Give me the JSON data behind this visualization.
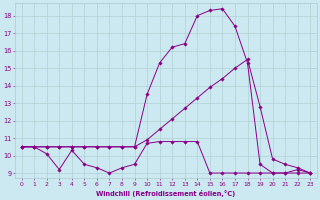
{
  "xlabel": "Windchill (Refroidissement éolien,°C)",
  "xlim": [
    -0.5,
    23.5
  ],
  "ylim": [
    8.7,
    18.7
  ],
  "yticks": [
    9,
    10,
    11,
    12,
    13,
    14,
    15,
    16,
    17,
    18
  ],
  "xticks": [
    0,
    1,
    2,
    3,
    4,
    5,
    6,
    7,
    8,
    9,
    10,
    11,
    12,
    13,
    14,
    15,
    16,
    17,
    18,
    19,
    20,
    21,
    22,
    23
  ],
  "bg_color": "#cce8f0",
  "line_color": "#880088",
  "grid_color": "#aacccc",
  "line1_x": [
    0,
    1,
    2,
    3,
    4,
    5,
    6,
    7,
    8,
    9,
    10,
    11,
    12,
    13,
    14,
    15,
    16,
    17,
    18,
    19,
    20,
    21,
    22,
    23
  ],
  "line1_y": [
    10.5,
    10.5,
    10.1,
    9.2,
    10.3,
    9.5,
    9.3,
    9.0,
    9.3,
    9.5,
    10.7,
    10.8,
    10.8,
    10.8,
    10.8,
    9.0,
    9.0,
    9.0,
    9.0,
    9.0,
    9.0,
    9.0,
    9.0,
    9.0
  ],
  "line2_x": [
    0,
    1,
    2,
    3,
    4,
    5,
    6,
    7,
    8,
    9,
    10,
    11,
    12,
    13,
    14,
    15,
    16,
    17,
    18,
    19,
    20,
    21,
    22,
    23
  ],
  "line2_y": [
    10.5,
    10.5,
    10.5,
    10.5,
    10.5,
    10.5,
    10.5,
    10.5,
    10.5,
    10.5,
    10.9,
    11.5,
    12.1,
    12.7,
    13.3,
    13.9,
    14.4,
    15.0,
    15.5,
    12.8,
    9.8,
    9.5,
    9.3,
    9.0
  ],
  "line3_x": [
    0,
    1,
    2,
    3,
    4,
    5,
    6,
    7,
    8,
    9,
    10,
    11,
    12,
    13,
    14,
    15,
    16,
    17,
    18,
    19,
    20,
    21,
    22,
    23
  ],
  "line3_y": [
    10.5,
    10.5,
    10.5,
    10.5,
    10.5,
    10.5,
    10.5,
    10.5,
    10.5,
    10.5,
    13.5,
    15.3,
    16.2,
    16.4,
    18.0,
    18.3,
    18.4,
    17.4,
    15.3,
    9.5,
    9.0,
    9.0,
    9.2,
    9.0
  ]
}
